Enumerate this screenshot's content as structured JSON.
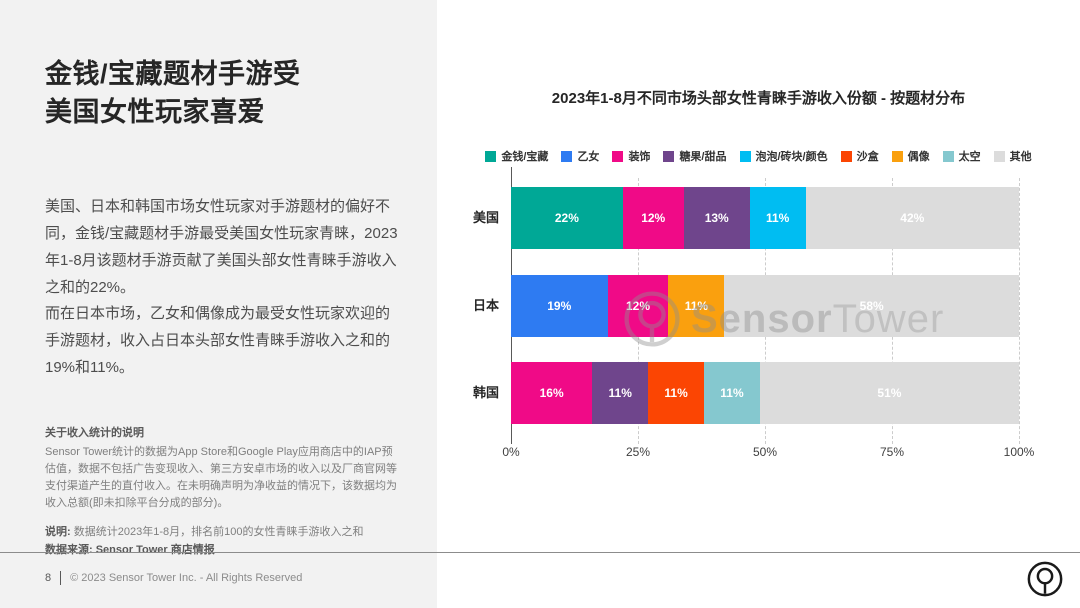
{
  "left_panel": {
    "title_line1": "金钱/宝藏题材手游受",
    "title_line2": "美国女性玩家喜爱",
    "paragraph1": "美国、日本和韩国市场女性玩家对手游题材的偏好不同，金钱/宝藏题材手游最受美国女性玩家青睐，2023年1-8月该题材手游贡献了美国头部女性青睐手游收入之和的22%。",
    "paragraph2": "而在日本市场，乙女和偶像成为最受女性玩家欢迎的手游题材，收入占日本头部女性青睐手游收入之和的19%和11%。",
    "note_title": "关于收入统计的说明",
    "note_body": "Sensor Tower统计的数据为App Store和Google Play应用商店中的IAP预估值，数据不包括广告变现收入、第三方安卓市场的收入以及厂商官网等支付渠道产生的直付收入。在未明确声明为净收益的情况下，该数据均为收入总额(即未扣除平台分成的部分)。",
    "note2_label": "说明:",
    "note2_text": "数据统计2023年1-8月，排名前100的女性青睐手游收入之和",
    "source_label": "数据来源: Sensor Tower 商店情报"
  },
  "footer": {
    "page_number": "8",
    "copyright": "© 2023 Sensor Tower Inc. - All Rights Reserved"
  },
  "watermark": {
    "bold": "Sensor",
    "light": "Tower"
  },
  "chart_data": {
    "type": "bar",
    "orientation": "horizontal",
    "stacked": true,
    "title": "2023年1-8月不同市场头部女性青睐手游收入份额 - 按题材分布",
    "xlabel": "",
    "ylabel": "",
    "xlim": [
      0,
      100
    ],
    "grid": "vertical-dashed",
    "legend_position": "top",
    "x_ticks": [
      {
        "value": 0,
        "label": "0%"
      },
      {
        "value": 25,
        "label": "25%"
      },
      {
        "value": 50,
        "label": "50%"
      },
      {
        "value": 75,
        "label": "75%"
      },
      {
        "value": 100,
        "label": "100%"
      }
    ],
    "legend": [
      {
        "label": "金钱/宝藏",
        "color": "#00A896"
      },
      {
        "label": "乙女",
        "color": "#2E7BF2"
      },
      {
        "label": "装饰",
        "color": "#F00A87"
      },
      {
        "label": "糖果/甜品",
        "color": "#6F458C"
      },
      {
        "label": "泡泡/砖块/颜色",
        "color": "#00BDF2"
      },
      {
        "label": "沙盒",
        "color": "#FB4503"
      },
      {
        "label": "偶像",
        "color": "#FAA00E"
      },
      {
        "label": "太空",
        "color": "#85C8CF"
      },
      {
        "label": "其他",
        "color": "#DCDCDC"
      }
    ],
    "categories": [
      "美国",
      "日本",
      "韩国"
    ],
    "rows": [
      {
        "category": "美国",
        "segments": [
          {
            "theme": "金钱/宝藏",
            "value": 22,
            "label": "22%",
            "color": "#00A896"
          },
          {
            "theme": "装饰",
            "value": 12,
            "label": "12%",
            "color": "#F00A87"
          },
          {
            "theme": "糖果/甜品",
            "value": 13,
            "label": "13%",
            "color": "#6F458C"
          },
          {
            "theme": "泡泡/砖块/颜色",
            "value": 11,
            "label": "11%",
            "color": "#00BDF2"
          },
          {
            "theme": "其他",
            "value": 42,
            "label": "42%",
            "color": "#DCDCDC"
          }
        ]
      },
      {
        "category": "日本",
        "segments": [
          {
            "theme": "乙女",
            "value": 19,
            "label": "19%",
            "color": "#2E7BF2"
          },
          {
            "theme": "装饰",
            "value": 12,
            "label": "12%",
            "color": "#F00A87"
          },
          {
            "theme": "偶像",
            "value": 11,
            "label": "11%",
            "color": "#FAA00E"
          },
          {
            "theme": "其他",
            "value": 58,
            "label": "58%",
            "color": "#DCDCDC"
          }
        ]
      },
      {
        "category": "韩国",
        "segments": [
          {
            "theme": "装饰",
            "value": 16,
            "label": "16%",
            "color": "#F00A87"
          },
          {
            "theme": "糖果/甜品",
            "value": 11,
            "label": "11%",
            "color": "#6F458C"
          },
          {
            "theme": "沙盒",
            "value": 11,
            "label": "11%",
            "color": "#FB4503"
          },
          {
            "theme": "太空",
            "value": 11,
            "label": "11%",
            "color": "#85C8CF"
          },
          {
            "theme": "其他",
            "value": 51,
            "label": "51%",
            "color": "#DCDCDC"
          }
        ]
      }
    ]
  }
}
